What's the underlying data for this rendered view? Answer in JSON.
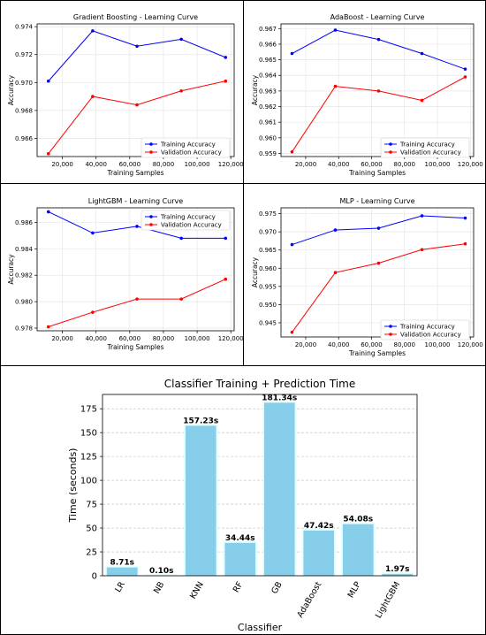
{
  "chart_data": [
    {
      "type": "line",
      "title": "Gradient Boosting - Learning Curve",
      "xlabel": "Training Samples",
      "ylabel": "Accuracy",
      "xlim": [
        5000,
        122000
      ],
      "ylim": [
        0.9647,
        0.9742
      ],
      "xticks": [
        20000,
        40000,
        60000,
        80000,
        100000,
        120000
      ],
      "xtick_labels": [
        "20,000",
        "40,000",
        "60,000",
        "80,000",
        "100,000",
        "120,000"
      ],
      "yticks": [
        0.966,
        0.968,
        0.97,
        0.972,
        0.974
      ],
      "ytick_labels": [
        "0.966",
        "0.968",
        "0.970",
        "0.972",
        "0.974"
      ],
      "x": [
        11700,
        38000,
        64300,
        90600,
        116900
      ],
      "series": [
        {
          "name": "Training Accuracy",
          "color": "#0000ff",
          "values": [
            0.9701,
            0.9737,
            0.9726,
            0.9731,
            0.9718
          ]
        },
        {
          "name": "Validation Accuracy",
          "color": "#ff0000",
          "values": [
            0.9649,
            0.969,
            0.9684,
            0.9694,
            0.9701
          ]
        }
      ],
      "grid": true,
      "legend": "lower-right"
    },
    {
      "type": "line",
      "title": "AdaBoost - Learning Curve",
      "xlabel": "Training Samples",
      "ylabel": "Accuracy",
      "xlim": [
        5000,
        122000
      ],
      "ylim": [
        0.9588,
        0.9673
      ],
      "xticks": [
        20000,
        40000,
        60000,
        80000,
        100000,
        120000
      ],
      "xtick_labels": [
        "20,000",
        "40,000",
        "60,000",
        "80,000",
        "100,000",
        "120,000"
      ],
      "yticks": [
        0.959,
        0.96,
        0.961,
        0.962,
        0.963,
        0.964,
        0.965,
        0.966,
        0.967
      ],
      "ytick_labels": [
        "0.959",
        "0.960",
        "0.961",
        "0.962",
        "0.963",
        "0.964",
        "0.965",
        "0.966",
        "0.967"
      ],
      "x": [
        11700,
        38000,
        64300,
        90600,
        116900
      ],
      "series": [
        {
          "name": "Training Accuracy",
          "color": "#0000ff",
          "values": [
            0.9654,
            0.9669,
            0.9663,
            0.9654,
            0.9644
          ]
        },
        {
          "name": "Validation Accuracy",
          "color": "#ff0000",
          "values": [
            0.9591,
            0.9633,
            0.963,
            0.9624,
            0.9639
          ]
        }
      ],
      "grid": true,
      "legend": "lower-right"
    },
    {
      "type": "line",
      "title": "LightGBM - Learning Curve",
      "xlabel": "Training Samples",
      "ylabel": "Accuracy",
      "xlim": [
        5000,
        122000
      ],
      "ylim": [
        0.9778,
        0.9871
      ],
      "xticks": [
        20000,
        40000,
        60000,
        80000,
        100000,
        120000
      ],
      "xtick_labels": [
        "20,000",
        "40,000",
        "60,000",
        "80,000",
        "100,000",
        "120,000"
      ],
      "yticks": [
        0.978,
        0.98,
        0.982,
        0.984,
        0.986
      ],
      "ytick_labels": [
        "0.978",
        "0.980",
        "0.982",
        "0.984",
        "0.986"
      ],
      "x": [
        11700,
        38000,
        64300,
        90600,
        116900
      ],
      "series": [
        {
          "name": "Training Accuracy",
          "color": "#0000ff",
          "values": [
            0.9868,
            0.9852,
            0.9857,
            0.9848,
            0.9848
          ]
        },
        {
          "name": "Validation Accuracy",
          "color": "#ff0000",
          "values": [
            0.9781,
            0.9792,
            0.9802,
            0.9802,
            0.9817
          ]
        }
      ],
      "grid": true,
      "legend": "upper-right"
    },
    {
      "type": "line",
      "title": "MLP - Learning Curve",
      "xlabel": "Training Samples",
      "ylabel": "Accuracy",
      "xlim": [
        5000,
        122000
      ],
      "ylim": [
        0.9411,
        0.9766
      ],
      "xticks": [
        20000,
        40000,
        60000,
        80000,
        100000,
        120000
      ],
      "xtick_labels": [
        "20,000",
        "40,000",
        "60,000",
        "80,000",
        "100,000",
        "120,000"
      ],
      "yticks": [
        0.945,
        0.95,
        0.955,
        0.96,
        0.965,
        0.97,
        0.975
      ],
      "ytick_labels": [
        "0.945",
        "0.950",
        "0.955",
        "0.960",
        "0.965",
        "0.970",
        "0.975"
      ],
      "x": [
        11700,
        38000,
        64300,
        90600,
        116900
      ],
      "series": [
        {
          "name": "Training Accuracy",
          "color": "#0000ff",
          "values": [
            0.9665,
            0.9705,
            0.971,
            0.9744,
            0.9738
          ]
        },
        {
          "name": "Validation Accuracy",
          "color": "#ff0000",
          "values": [
            0.9424,
            0.9588,
            0.9614,
            0.9651,
            0.9667
          ]
        }
      ],
      "grid": true,
      "legend": "lower-right"
    },
    {
      "type": "bar",
      "title": "Classifier Training + Prediction Time",
      "xlabel": "Classifier",
      "ylabel": "Time (seconds)",
      "categories": [
        "LR",
        "NB",
        "KNN",
        "RF",
        "GB",
        "AdaBoost",
        "MLP",
        "LightGBM"
      ],
      "values": [
        8.71,
        0.1,
        157.23,
        34.44,
        181.34,
        47.42,
        54.08,
        1.97
      ],
      "value_labels": [
        "8.71s",
        "0.10s",
        "157.23s",
        "34.44s",
        "181.34s",
        "47.42s",
        "54.08s",
        "1.97s"
      ],
      "ylim": [
        0,
        190
      ],
      "yticks": [
        0,
        25,
        50,
        75,
        100,
        125,
        150,
        175
      ],
      "ytick_labels": [
        "0",
        "25",
        "50",
        "75",
        "100",
        "125",
        "150",
        "175"
      ],
      "bar_color": "#87ceeb",
      "grid": true
    }
  ]
}
